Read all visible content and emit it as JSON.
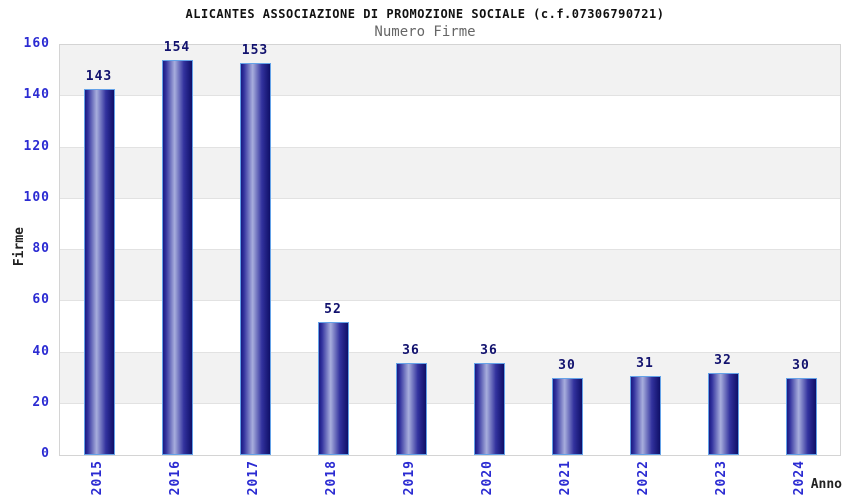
{
  "chart_data": {
    "type": "bar",
    "title": "ALICANTES ASSOCIAZIONE DI PROMOZIONE SOCIALE (c.f.07306790721)",
    "subtitle": "Numero Firme",
    "xlabel": "Anno",
    "ylabel": "Firme",
    "categories": [
      "2015",
      "2016",
      "2017",
      "2018",
      "2019",
      "2020",
      "2021",
      "2022",
      "2023",
      "2024"
    ],
    "values": [
      143,
      154,
      153,
      52,
      36,
      36,
      30,
      31,
      32,
      30
    ],
    "ylim": [
      0,
      160
    ],
    "ytick_step": 20,
    "ytick_labels": [
      "0",
      "20",
      "40",
      "60",
      "80",
      "100",
      "120",
      "140",
      "160"
    ],
    "grid": "horizontal alternating bands",
    "legend": "none",
    "colors": {
      "bar_dark": "#1a1a82",
      "bar_mid": "#32329e",
      "bar_light": "#a8aedd",
      "bar_end": "#0f0f68",
      "bar_border": "#64a2e8",
      "tick_label": "#2b2bd2",
      "value_label": "#12126e",
      "axis_label": "#222222",
      "title": "#111111",
      "subtitle": "#666666",
      "band_gray": "#f2f2f2",
      "gridline": "#e2e2e2",
      "plot_border": "#d4d4d4"
    }
  }
}
